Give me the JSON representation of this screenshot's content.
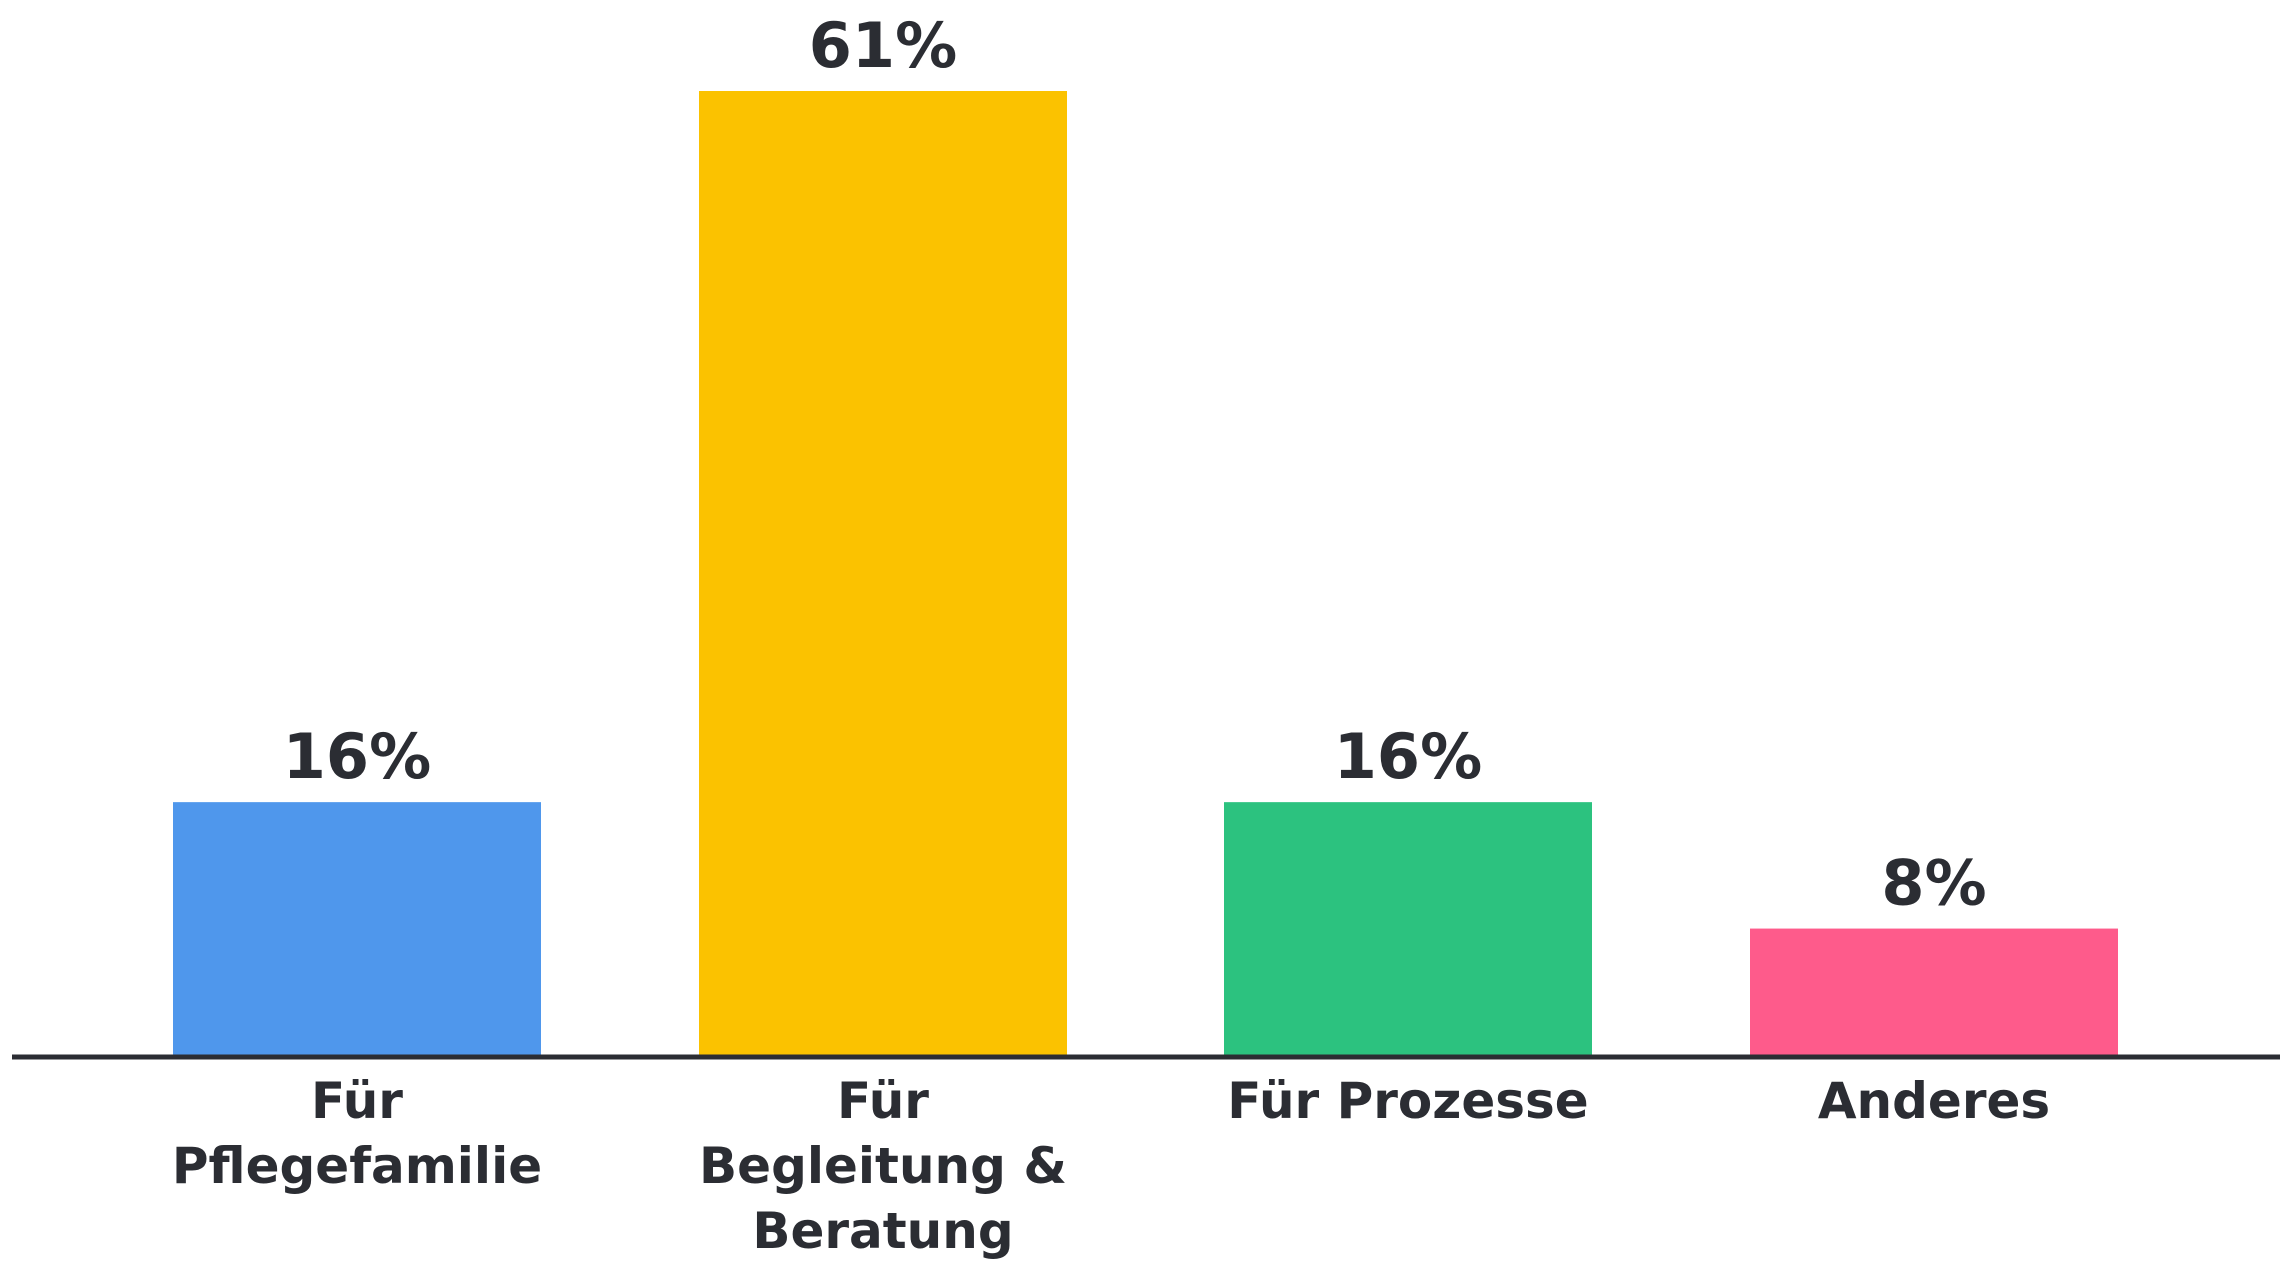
{
  "chart_data": {
    "type": "bar",
    "categories": [
      [
        "Für",
        "Pflegefamilie"
      ],
      [
        "Für",
        "Begleitung &",
        "Beratung"
      ],
      [
        "Für Prozesse"
      ],
      [
        "Anderes"
      ]
    ],
    "values": [
      16,
      61,
      16,
      8
    ],
    "value_labels": [
      "16%",
      "61%",
      "16%",
      "8%"
    ],
    "colors": [
      "#4f97ec",
      "#fbc200",
      "#2cc27f",
      "#fe5b8b"
    ],
    "axis_color": "#2b2d33",
    "ylim": [
      0,
      61
    ],
    "grid": false,
    "legend": "none"
  }
}
